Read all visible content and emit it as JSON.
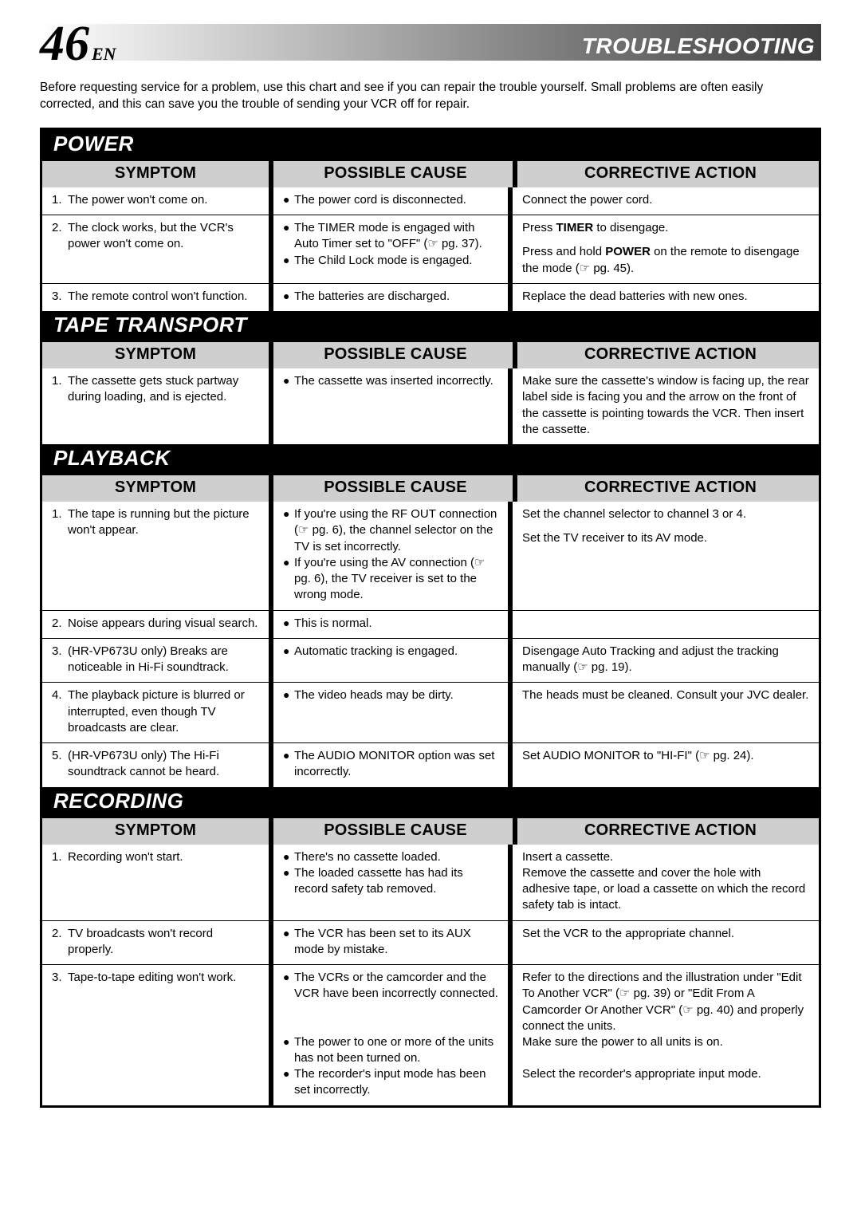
{
  "header": {
    "page_number": "46",
    "lang": "EN",
    "title": "TROUBLESHOOTING"
  },
  "intro": "Before requesting service for a problem, use this chart and see if you can repair the trouble yourself. Small problems are often easily corrected, and this can save you the trouble of sending your VCR off for repair.",
  "col_labels": {
    "symptom": "SYMPTOM",
    "cause": "POSSIBLE CAUSE",
    "action": "CORRECTIVE ACTION"
  },
  "sections": [
    {
      "title": "POWER",
      "rows": [
        {
          "num": "1.",
          "symptom": "The power won't come on.",
          "causes": [
            "The power cord is disconnected."
          ],
          "actions": [
            "Connect the power cord."
          ]
        },
        {
          "num": "2.",
          "symptom": "The clock works, but the VCR's power won't come on.",
          "causes": [
            "The TIMER mode is engaged with Auto Timer set to \"OFF\" (☞ pg. 37).",
            "The Child Lock mode is engaged."
          ],
          "actions": [
            "Press <b>TIMER</b> to disengage.",
            "Press and hold <b>POWER</b> on the remote to disengage the mode (☞ pg. 45)."
          ]
        },
        {
          "num": "3.",
          "symptom": "The remote control won't function.",
          "causes": [
            "The batteries are discharged."
          ],
          "actions": [
            "Replace the dead batteries with new ones."
          ]
        }
      ]
    },
    {
      "title": "TAPE TRANSPORT",
      "rows": [
        {
          "num": "1.",
          "symptom": "The cassette gets stuck partway during loading, and is ejected.",
          "causes": [
            "The cassette was inserted incorrectly."
          ],
          "actions": [
            "Make sure the cassette's window is facing up, the rear label side is facing you and the arrow on the front of the cassette is pointing towards the VCR. Then insert the cassette."
          ]
        }
      ]
    },
    {
      "title": "PLAYBACK",
      "rows": [
        {
          "num": "1.",
          "symptom": "The tape is running but the picture won't appear.",
          "causes": [
            "If you're using the RF OUT connection (☞ pg. 6), the channel selector on the TV is set incorrectly.",
            "If you're using the AV connection (☞ pg. 6), the TV receiver is set to the wrong mode."
          ],
          "actions": [
            "Set the channel selector to channel 3 or 4.",
            "Set the TV receiver to its AV mode."
          ]
        },
        {
          "num": "2.",
          "symptom": "Noise appears during visual search.",
          "causes": [
            "This is normal."
          ],
          "actions": [
            ""
          ]
        },
        {
          "num": "3.",
          "symptom": "(HR-VP673U only) Breaks are noticeable in Hi-Fi soundtrack.",
          "causes": [
            "Automatic tracking is engaged."
          ],
          "actions": [
            "Disengage Auto Tracking and adjust the tracking manually (☞ pg. 19)."
          ]
        },
        {
          "num": "4.",
          "symptom": "The playback picture is blurred or interrupted, even though TV broadcasts are clear.",
          "causes": [
            "The video heads may be dirty."
          ],
          "actions": [
            "The heads must be cleaned. Consult your JVC dealer."
          ]
        },
        {
          "num": "5.",
          "symptom": "(HR-VP673U only) The Hi-Fi soundtrack cannot be heard.",
          "causes": [
            "The AUDIO MONITOR option was set incorrectly."
          ],
          "actions": [
            "Set AUDIO MONITOR to \"HI-FI\" (☞ pg. 24)."
          ]
        }
      ]
    },
    {
      "title": "RECORDING",
      "rows": [
        {
          "num": "1.",
          "symptom": "Recording won't start.",
          "causes": [
            "There's no cassette loaded.",
            "The loaded cassette has had its record safety tab removed."
          ],
          "actions": [
            "Insert a cassette.<br>Remove the cassette and cover the hole with adhesive tape, or load a cassette on which the record safety tab is intact."
          ]
        },
        {
          "num": "2.",
          "symptom": "TV broadcasts won't record properly.",
          "causes": [
            "The VCR has been set to its AUX mode by mistake."
          ],
          "actions": [
            "Set the VCR to the appropriate channel."
          ]
        },
        {
          "num": "3.",
          "symptom": "Tape-to-tape editing won't work.",
          "causes": [
            "The VCRs or the camcorder and the VCR have been incorrectly connected.",
            "The power to one or more of the units has not been turned on.",
            "The recorder's input mode has been set incorrectly."
          ],
          "actions": [
            "Refer to the directions and the illustration under \"Edit To Another VCR\" (☞ pg. 39) or \"Edit From A Camcorder Or Another VCR\" (☞ pg. 40) and properly connect the units.<br>Make sure the power to all units is on.",
            "Select the recorder's appropriate input mode."
          ]
        }
      ]
    }
  ]
}
